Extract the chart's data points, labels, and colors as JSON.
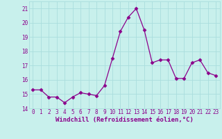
{
  "x": [
    0,
    1,
    2,
    3,
    4,
    5,
    6,
    7,
    8,
    9,
    10,
    11,
    12,
    13,
    14,
    15,
    16,
    17,
    18,
    19,
    20,
    21,
    22,
    23
  ],
  "y": [
    15.3,
    15.3,
    14.8,
    14.8,
    14.4,
    14.8,
    15.1,
    15.0,
    14.9,
    15.6,
    17.5,
    19.4,
    20.4,
    21.0,
    19.5,
    17.2,
    17.4,
    17.4,
    16.1,
    16.1,
    17.2,
    17.4,
    16.5,
    16.3
  ],
  "line_color": "#8B008B",
  "marker": "D",
  "markersize": 2.5,
  "linewidth": 0.9,
  "background_color": "#c8f0ec",
  "grid_color": "#aadddd",
  "xlabel": "Windchill (Refroidissement éolien,°C)",
  "ylim": [
    14,
    21.5
  ],
  "xlim": [
    -0.5,
    23.5
  ],
  "yticks": [
    14,
    15,
    16,
    17,
    18,
    19,
    20,
    21
  ],
  "xticks": [
    0,
    1,
    2,
    3,
    4,
    5,
    6,
    7,
    8,
    9,
    10,
    11,
    12,
    13,
    14,
    15,
    16,
    17,
    18,
    19,
    20,
    21,
    22,
    23
  ],
  "tick_color": "#8B008B",
  "tick_fontsize": 5.5,
  "xlabel_fontsize": 6.5,
  "label_color": "#8B008B"
}
